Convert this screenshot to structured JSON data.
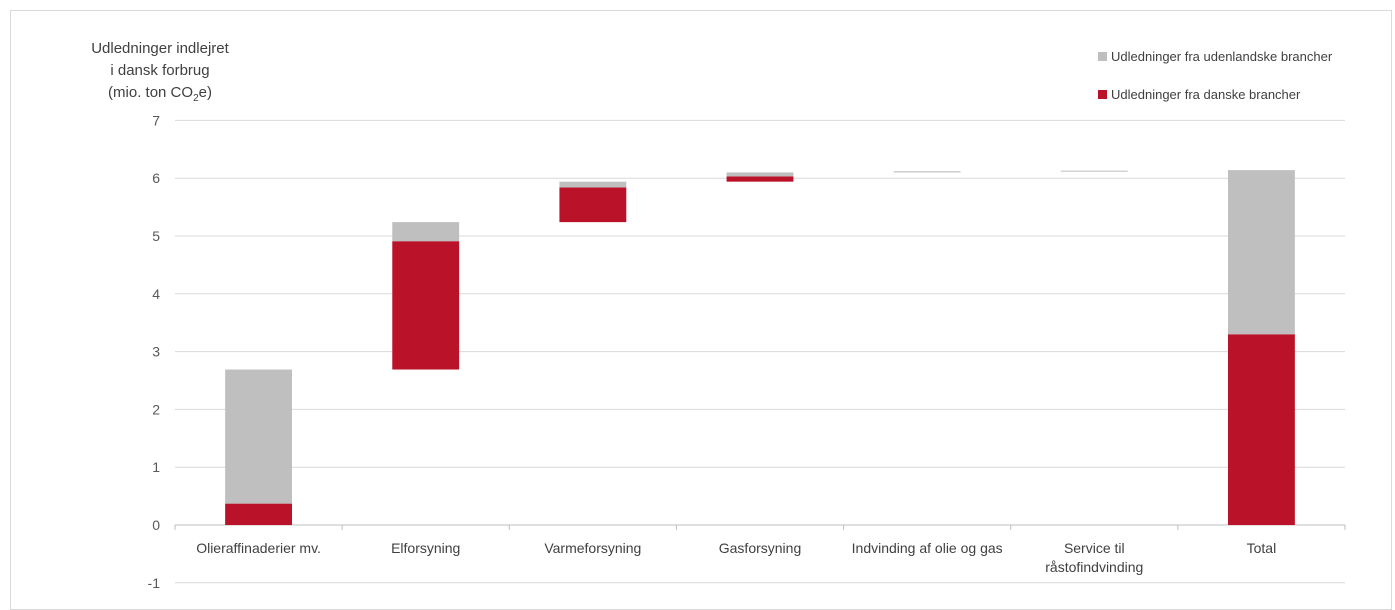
{
  "chart_data": {
    "type": "bar",
    "subtype": "waterfall",
    "y_title_line1": "Udledninger indlejret",
    "y_title_line2": "i dansk forbrug",
    "y_title_unit_pre": "(mio. ton CO",
    "y_title_unit_sub": "2",
    "y_title_unit_post": "e)",
    "ylim": [
      -1,
      7
    ],
    "yticks": [
      -1,
      0,
      1,
      2,
      3,
      4,
      5,
      6,
      7
    ],
    "grid": true,
    "legend_position": "top-right",
    "categories": [
      [
        "Olieraffinaderier mv."
      ],
      [
        "Elforsyning"
      ],
      [
        "Varmeforsyning"
      ],
      [
        "Gasforsyning"
      ],
      [
        "Indvinding af olie og gas"
      ],
      [
        "Service til",
        "råstofindvinding"
      ],
      [
        "Total"
      ]
    ],
    "series": [
      {
        "name": "Udledninger fra danske brancher",
        "color": "#BA1228",
        "values": [
          0.37,
          2.22,
          0.6,
          0.09,
          0.0,
          0.0,
          3.3
        ]
      },
      {
        "name": "Udledninger fra udenlandske brancher",
        "color": "#BFBFBF",
        "values": [
          2.32,
          0.33,
          0.1,
          0.07,
          0.02,
          0.01,
          2.84
        ]
      }
    ],
    "waterfall_bases": [
      0,
      2.69,
      5.24,
      5.94,
      6.1,
      6.12,
      0
    ]
  }
}
